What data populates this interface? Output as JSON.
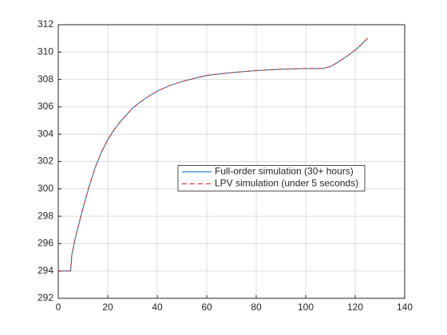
{
  "chart_data": {
    "type": "line",
    "x": [
      0,
      5,
      5.5,
      7,
      10,
      12.5,
      15,
      17.5,
      20,
      22.5,
      25,
      30,
      35,
      40,
      45,
      50,
      60,
      70,
      80,
      90,
      100,
      107,
      110,
      112.5,
      115,
      117.5,
      120,
      122.5,
      125
    ],
    "series": [
      {
        "name": "Full-order simulation (30+ hours)",
        "color": "#0072bd",
        "dash": "none",
        "values": [
          294,
          294,
          295.2,
          296.5,
          298.6,
          300.2,
          301.6,
          302.7,
          303.6,
          304.3,
          304.9,
          305.9,
          306.6,
          307.15,
          307.55,
          307.85,
          308.3,
          308.5,
          308.65,
          308.75,
          308.8,
          308.8,
          308.95,
          309.2,
          309.5,
          309.8,
          310.15,
          310.55,
          311.0
        ]
      },
      {
        "name": "LPV simulation (under 5 seconds)",
        "color": "#d62728",
        "dash": "6 4",
        "values": [
          294,
          294,
          295.2,
          296.5,
          298.6,
          300.2,
          301.6,
          302.7,
          303.6,
          304.3,
          304.9,
          305.9,
          306.6,
          307.15,
          307.55,
          307.85,
          308.3,
          308.5,
          308.65,
          308.75,
          308.8,
          308.8,
          308.95,
          309.2,
          309.5,
          309.8,
          310.15,
          310.55,
          311.0
        ]
      }
    ],
    "xlim": [
      0,
      140
    ],
    "xticks": [
      0,
      20,
      40,
      60,
      80,
      100,
      120,
      140
    ],
    "ylim": [
      292,
      312
    ],
    "yticks": [
      292,
      294,
      296,
      298,
      300,
      302,
      304,
      306,
      308,
      310,
      312
    ],
    "grid": true,
    "legend": "center"
  }
}
